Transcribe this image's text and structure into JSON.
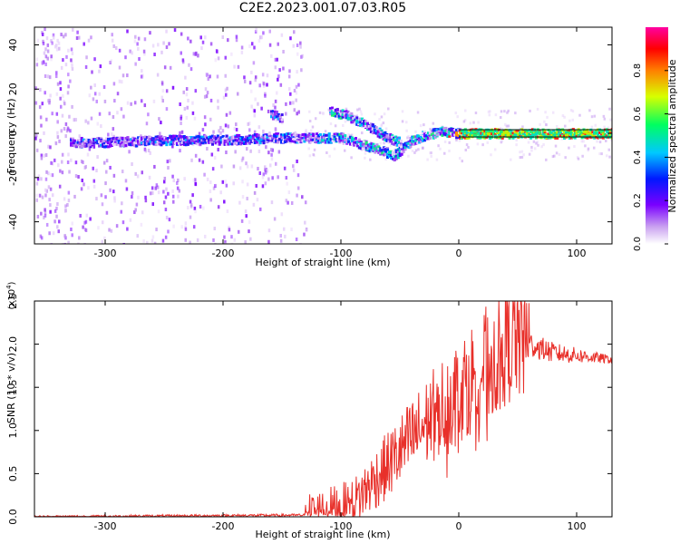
{
  "title": "C2E2.2023.001.07.03.R05",
  "colorbar": {
    "label": "Normalized spectral amplitude",
    "range": [
      0,
      1
    ],
    "ticks": [
      "0.0",
      "0.2",
      "0.4",
      "0.6",
      "0.8"
    ],
    "tick_values": [
      0.0,
      0.2,
      0.4,
      0.6,
      0.8
    ]
  },
  "chart_data": [
    {
      "type": "heatmap",
      "xlabel": "Height of straight line (km)",
      "ylabel": "Frequency (Hz)",
      "xlim": [
        -360,
        130
      ],
      "ylim": [
        -50,
        48
      ],
      "xticks": [
        -300,
        -200,
        -100,
        0,
        100
      ],
      "xtick_labels": [
        "-300",
        "-200",
        "-100",
        "0",
        "100"
      ],
      "yticks": [
        -40,
        -20,
        0,
        20,
        40
      ],
      "ytick_labels": [
        "-40",
        "-20",
        "0",
        "20",
        "40"
      ],
      "ridges": [
        {
          "name": "main",
          "points": [
            [
              -330,
              -4
            ],
            [
              -300,
              -4
            ],
            [
              -250,
              -3
            ],
            [
              -200,
              -3
            ],
            [
              -160,
              -2
            ],
            [
              -140,
              -2
            ],
            [
              -120,
              -2
            ],
            [
              -100,
              -2
            ],
            [
              -70,
              -7
            ],
            [
              -55,
              -10
            ],
            [
              -40,
              -3
            ],
            [
              -30,
              -1
            ],
            [
              -15,
              1
            ],
            [
              0,
              0
            ],
            [
              50,
              0
            ],
            [
              130,
              0
            ]
          ]
        },
        {
          "name": "upper",
          "points": [
            [
              -110,
              10
            ],
            [
              -95,
              8
            ],
            [
              -80,
              4
            ],
            [
              -60,
              -2
            ],
            [
              -50,
              -4
            ]
          ]
        },
        {
          "name": "fork",
          "points": [
            [
              -160,
              9
            ],
            [
              -150,
              7
            ]
          ]
        }
      ]
    },
    {
      "type": "line",
      "xlabel": "Height of straight line (km)",
      "ylabel": "SNR (10 * v/v)",
      "y_multiplier": "(x10",
      "y_multiplier_exp": "4",
      "y_multiplier_close": ")",
      "xlim": [
        -360,
        130
      ],
      "ylim": [
        0,
        2.5
      ],
      "xticks": [
        -300,
        -200,
        -100,
        0,
        100
      ],
      "xtick_labels": [
        "-300",
        "-200",
        "-100",
        "0",
        "100"
      ],
      "yticks": [
        0.0,
        0.5,
        1.0,
        1.5,
        2.0,
        2.5
      ],
      "ytick_labels": [
        "0.0",
        "0.5",
        "1.0",
        "1.5",
        "2.0",
        "2.5"
      ],
      "series": [
        {
          "name": "SNR",
          "color": "#e8302a",
          "envelope": {
            "x": [
              -360,
              -130,
              -110,
              -90,
              -70,
              -50,
              -30,
              -10,
              10,
              30,
              45,
              60,
              80,
              100,
              130
            ],
            "y": [
              0.0,
              0.02,
              0.08,
              0.15,
              0.45,
              0.75,
              1.05,
              1.35,
              1.6,
              1.85,
              2.1,
              2.0,
              1.9,
              1.87,
              1.82
            ]
          }
        }
      ]
    }
  ]
}
